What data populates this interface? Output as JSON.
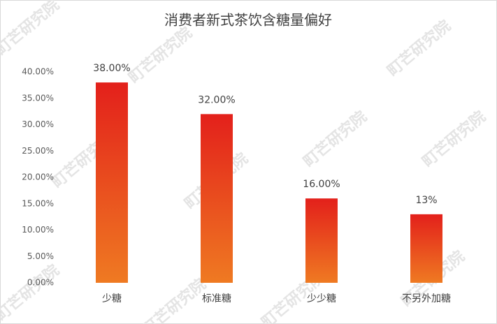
{
  "chart_data": {
    "type": "bar",
    "title": "消费者新式茶饮含糖量偏好",
    "watermark": "町芒研究院",
    "categories": [
      "少糖",
      "标准糖",
      "少少糖",
      "不另外加糖"
    ],
    "values": [
      38,
      32,
      16,
      13
    ],
    "value_labels": [
      "38.00%",
      "32.00%",
      "16.00%",
      "13%"
    ],
    "gradient": [
      "#e3201b",
      "#ef7a22"
    ],
    "ylim": [
      0,
      40
    ],
    "yticks": [
      {
        "value": 0,
        "label": "0.00%"
      },
      {
        "value": 5,
        "label": "5.00%"
      },
      {
        "value": 10,
        "label": "10.00%"
      },
      {
        "value": 15,
        "label": "15.00%"
      },
      {
        "value": 20,
        "label": "20.00%"
      },
      {
        "value": 25,
        "label": "25.00%"
      },
      {
        "value": 30,
        "label": "30.00%"
      },
      {
        "value": 35,
        "label": "35.00%"
      },
      {
        "value": 40,
        "label": "40.00%"
      }
    ],
    "grid": false
  }
}
